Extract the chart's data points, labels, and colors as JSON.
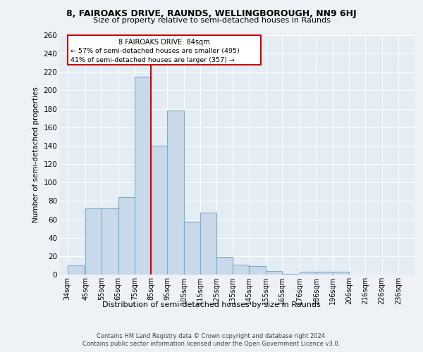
{
  "title1": "8, FAIROAKS DRIVE, RAUNDS, WELLINGBOROUGH, NN9 6HJ",
  "title2": "Size of property relative to semi-detached houses in Raunds",
  "xlabel": "Distribution of semi-detached houses by size in Raunds",
  "ylabel": "Number of semi-detached properties",
  "categories": [
    "34sqm",
    "45sqm",
    "55sqm",
    "65sqm",
    "75sqm",
    "85sqm",
    "95sqm",
    "105sqm",
    "115sqm",
    "125sqm",
    "135sqm",
    "145sqm",
    "155sqm",
    "165sqm",
    "176sqm",
    "186sqm",
    "196sqm",
    "206sqm",
    "216sqm",
    "226sqm",
    "236sqm"
  ],
  "values": [
    10,
    72,
    72,
    84,
    215,
    140,
    178,
    57,
    67,
    19,
    11,
    9,
    4,
    1,
    3,
    3,
    3,
    0,
    0,
    0,
    0
  ],
  "bar_color": "#c9d9ea",
  "bar_edge_color": "#7faecb",
  "property_line_color": "#cc0000",
  "annotation_title": "8 FAIROAKS DRIVE: 84sqm",
  "annotation_line1": "← 57% of semi-detached houses are smaller (495)",
  "annotation_line2": "41% of semi-detached houses are larger (357) →",
  "annotation_box_color": "#cc0000",
  "ylim": [
    0,
    260
  ],
  "yticks": [
    0,
    20,
    40,
    60,
    80,
    100,
    120,
    140,
    160,
    180,
    200,
    220,
    240,
    260
  ],
  "footer1": "Contains HM Land Registry data © Crown copyright and database right 2024.",
  "footer2": "Contains public sector information licensed under the Open Government Licence v3.0.",
  "bg_color": "#eef2f7",
  "plot_bg_color": "#e4ecf4",
  "grid_color": "#ffffff",
  "bin_starts": [
    34,
    45,
    55,
    65,
    75,
    85,
    95,
    105,
    115,
    125,
    135,
    145,
    155,
    165,
    176,
    186,
    196,
    206,
    216,
    226,
    236
  ],
  "bin_width": 10
}
